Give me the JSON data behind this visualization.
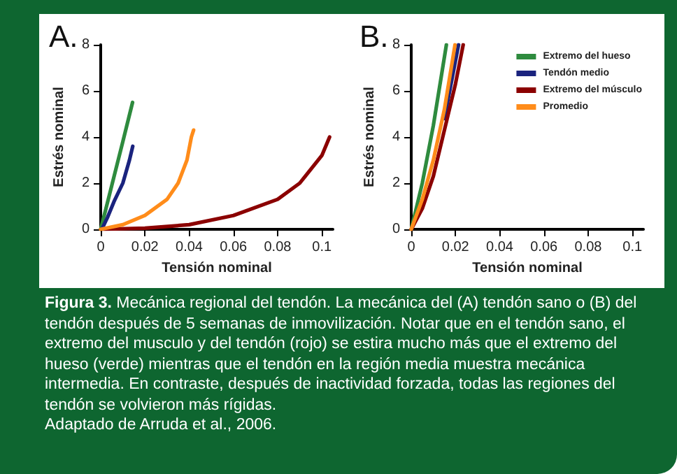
{
  "chart_data": [
    {
      "type": "line",
      "title": "A.",
      "xlabel": "Tensión nominal",
      "ylabel": "Estrés nominal",
      "xlim": [
        0,
        0.105
      ],
      "xticks": [
        0,
        0.02,
        0.04,
        0.06,
        0.08,
        0.1
      ],
      "ylim": [
        0,
        8
      ],
      "yticks": [
        0,
        2,
        4,
        6,
        8
      ],
      "grid": false,
      "legend": false,
      "series": [
        {
          "color": "#2e8b3e",
          "x": [
            0,
            0.005,
            0.01,
            0.0144
          ],
          "values": [
            0,
            1.9,
            3.8,
            5.5
          ]
        },
        {
          "color": "#1a237e",
          "x": [
            0.001,
            0.003,
            0.006,
            0.01,
            0.013,
            0.0145
          ],
          "values": [
            0.1,
            0.5,
            1.2,
            2,
            3,
            3.6
          ]
        },
        {
          "color": "#8b0000",
          "x": [
            0,
            0.02,
            0.04,
            0.06,
            0.08,
            0.09,
            0.1,
            0.1035
          ],
          "values": [
            0,
            0.05,
            0.2,
            0.6,
            1.3,
            2,
            3.2,
            4
          ]
        },
        {
          "color": "#ff8c1a",
          "x": [
            0,
            0.01,
            0.02,
            0.03,
            0.035,
            0.039,
            0.041,
            0.042
          ],
          "values": [
            0,
            0.2,
            0.6,
            1.3,
            2,
            3,
            4,
            4.3
          ]
        }
      ],
      "annotations": [
        "Figura 3.",
        "Mecánica regional del tendón. La mecánica del (A) tendón sano o (B) del tendón después de 5 semanas de inmovilización. Notar que en el tendón sano, el extremo del musculo y del tendón (rojo) se estira mucho más que el extremo del hueso (verde) mientras que el tendón en la región media muestra mecánica intermedia. En contraste, después de inactividad forzada, todas las regiones del tendón se volvieron más rígidas.",
        "Adaptado de Arruda et al., 2006."
      ]
    },
    {
      "type": "line",
      "title": "B.",
      "xlabel": "Tensión nominal",
      "ylabel": "Estrés nominal",
      "xlim": [
        0,
        0.105
      ],
      "xticks": [
        0,
        0.02,
        0.04,
        0.06,
        0.08,
        0.1
      ],
      "ylim": [
        0,
        8
      ],
      "yticks": [
        0,
        2,
        4,
        6,
        8
      ],
      "grid": false,
      "legend": "top right",
      "series": [
        {
          "name": "Extremo del hueso",
          "color": "#2e8b3e",
          "x": [
            0,
            0.005,
            0.01,
            0.0159
          ],
          "values": [
            0,
            2,
            4.5,
            8
          ]
        },
        {
          "name": "Tendón medio",
          "color": "#1a237e",
          "x": [
            0.015,
            0.0214
          ],
          "values": [
            4.8,
            8
          ]
        },
        {
          "name": "Extremo del músculo",
          "color": "#8b0000",
          "x": [
            0,
            0.005,
            0.01,
            0.015,
            0.02,
            0.0235
          ],
          "values": [
            0,
            0.9,
            2.3,
            4.3,
            6.3,
            8
          ]
        },
        {
          "name": "Promedio",
          "color": "#ff8c1a",
          "x": [
            0,
            0.005,
            0.01,
            0.015,
            0.0198
          ],
          "values": [
            0,
            1.3,
            3,
            5.2,
            8
          ]
        }
      ]
    }
  ]
}
